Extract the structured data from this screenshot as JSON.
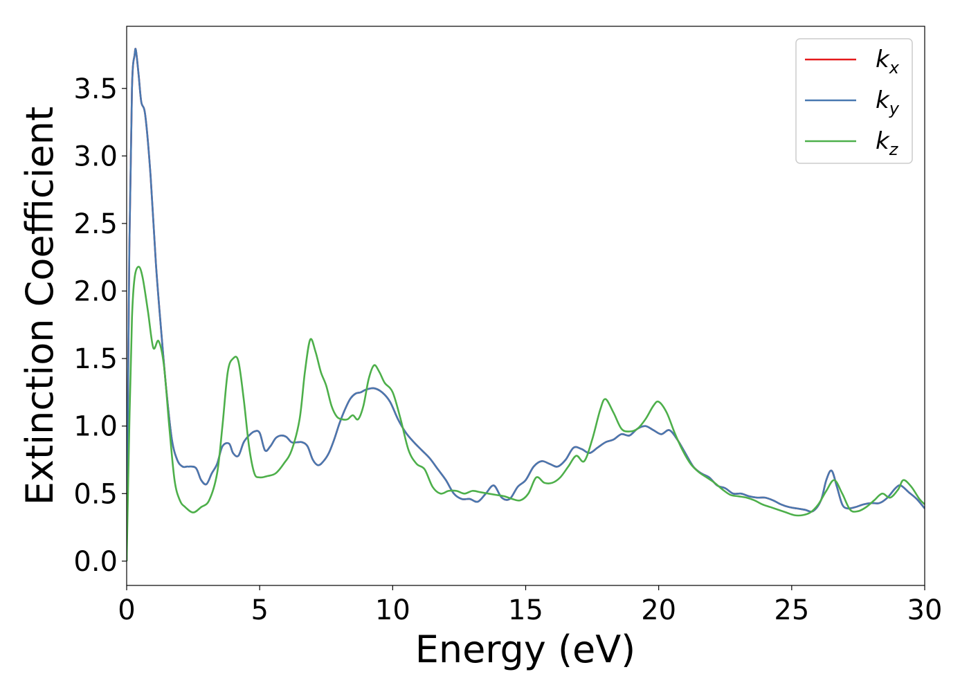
{
  "chart_data": {
    "type": "line",
    "title": "",
    "xlabel": "Energy (eV)",
    "ylabel": "Extinction Coefficient",
    "xlim": [
      0,
      30
    ],
    "ylim": [
      -0.18,
      3.96
    ],
    "xticks": [
      0,
      5,
      10,
      15,
      20,
      25,
      30
    ],
    "xtick_labels": [
      "0",
      "5",
      "10",
      "15",
      "20",
      "25",
      "30"
    ],
    "yticks": [
      0.0,
      0.5,
      1.0,
      1.5,
      2.0,
      2.5,
      3.0,
      3.5
    ],
    "ytick_labels": [
      "0.0",
      "0.5",
      "1.0",
      "1.5",
      "2.0",
      "2.5",
      "3.0",
      "3.5"
    ],
    "grid": false,
    "legend_position": "top-right",
    "series": [
      {
        "name": "k",
        "subscript": "x",
        "color": "#e41a1c",
        "x": [
          0.0,
          0.1,
          0.2,
          0.3,
          0.35,
          0.45,
          0.55,
          0.7,
          0.9,
          1.1,
          1.3,
          1.5,
          1.7,
          1.9,
          2.1,
          2.3,
          2.6,
          2.8,
          3.0,
          3.2,
          3.4,
          3.6,
          3.85,
          4.0,
          4.2,
          4.4,
          4.6,
          4.8,
          5.0,
          5.2,
          5.4,
          5.6,
          5.8,
          6.0,
          6.2,
          6.4,
          6.6,
          6.8,
          7.0,
          7.2,
          7.4,
          7.6,
          7.8,
          8.0,
          8.2,
          8.4,
          8.6,
          8.8,
          9.0,
          9.3,
          9.6,
          9.9,
          10.2,
          10.5,
          10.8,
          11.1,
          11.4,
          11.7,
          12.0,
          12.3,
          12.6,
          12.9,
          13.2,
          13.5,
          13.8,
          14.1,
          14.4,
          14.7,
          15.0,
          15.3,
          15.6,
          15.9,
          16.2,
          16.5,
          16.8,
          17.1,
          17.4,
          17.7,
          18.0,
          18.3,
          18.6,
          18.9,
          19.2,
          19.5,
          19.8,
          20.1,
          20.4,
          20.7,
          21.0,
          21.3,
          21.6,
          21.9,
          22.2,
          22.5,
          22.8,
          23.1,
          23.4,
          23.7,
          24.0,
          24.3,
          24.6,
          24.9,
          25.2,
          25.5,
          25.8,
          26.1,
          26.3,
          26.5,
          26.7,
          26.9,
          27.1,
          27.4,
          27.7,
          28.0,
          28.3,
          28.6,
          28.9,
          29.1,
          29.4,
          29.7,
          30.0
        ],
        "y": [
          0.0,
          2.3,
          3.5,
          3.75,
          3.78,
          3.6,
          3.4,
          3.3,
          2.85,
          2.2,
          1.7,
          1.25,
          0.9,
          0.75,
          0.7,
          0.7,
          0.69,
          0.6,
          0.57,
          0.65,
          0.72,
          0.85,
          0.87,
          0.8,
          0.78,
          0.88,
          0.93,
          0.96,
          0.95,
          0.82,
          0.85,
          0.91,
          0.93,
          0.92,
          0.88,
          0.88,
          0.88,
          0.85,
          0.75,
          0.71,
          0.74,
          0.8,
          0.9,
          1.02,
          1.12,
          1.2,
          1.24,
          1.25,
          1.27,
          1.28,
          1.25,
          1.18,
          1.05,
          0.95,
          0.88,
          0.82,
          0.76,
          0.68,
          0.6,
          0.5,
          0.46,
          0.46,
          0.44,
          0.5,
          0.56,
          0.47,
          0.46,
          0.55,
          0.6,
          0.7,
          0.74,
          0.72,
          0.7,
          0.75,
          0.84,
          0.83,
          0.8,
          0.84,
          0.88,
          0.9,
          0.94,
          0.93,
          0.98,
          1.0,
          0.97,
          0.94,
          0.97,
          0.9,
          0.8,
          0.7,
          0.65,
          0.62,
          0.56,
          0.54,
          0.5,
          0.5,
          0.48,
          0.47,
          0.47,
          0.45,
          0.42,
          0.4,
          0.39,
          0.38,
          0.37,
          0.45,
          0.6,
          0.67,
          0.55,
          0.42,
          0.39,
          0.4,
          0.42,
          0.43,
          0.43,
          0.47,
          0.54,
          0.56,
          0.51,
          0.46,
          0.39
        ]
      },
      {
        "name": "k",
        "subscript": "y",
        "color": "#4878b0",
        "x": [
          0.0,
          0.1,
          0.2,
          0.3,
          0.35,
          0.45,
          0.55,
          0.7,
          0.9,
          1.1,
          1.3,
          1.5,
          1.7,
          1.9,
          2.1,
          2.3,
          2.6,
          2.8,
          3.0,
          3.2,
          3.4,
          3.6,
          3.85,
          4.0,
          4.2,
          4.4,
          4.6,
          4.8,
          5.0,
          5.2,
          5.4,
          5.6,
          5.8,
          6.0,
          6.2,
          6.4,
          6.6,
          6.8,
          7.0,
          7.2,
          7.4,
          7.6,
          7.8,
          8.0,
          8.2,
          8.4,
          8.6,
          8.8,
          9.0,
          9.3,
          9.6,
          9.9,
          10.2,
          10.5,
          10.8,
          11.1,
          11.4,
          11.7,
          12.0,
          12.3,
          12.6,
          12.9,
          13.2,
          13.5,
          13.8,
          14.1,
          14.4,
          14.7,
          15.0,
          15.3,
          15.6,
          15.9,
          16.2,
          16.5,
          16.8,
          17.1,
          17.4,
          17.7,
          18.0,
          18.3,
          18.6,
          18.9,
          19.2,
          19.5,
          19.8,
          20.1,
          20.4,
          20.7,
          21.0,
          21.3,
          21.6,
          21.9,
          22.2,
          22.5,
          22.8,
          23.1,
          23.4,
          23.7,
          24.0,
          24.3,
          24.6,
          24.9,
          25.2,
          25.5,
          25.8,
          26.1,
          26.3,
          26.5,
          26.7,
          26.9,
          27.1,
          27.4,
          27.7,
          28.0,
          28.3,
          28.6,
          28.9,
          29.1,
          29.4,
          29.7,
          30.0
        ],
        "y": [
          0.0,
          2.3,
          3.5,
          3.75,
          3.78,
          3.6,
          3.4,
          3.3,
          2.85,
          2.2,
          1.7,
          1.25,
          0.9,
          0.75,
          0.7,
          0.7,
          0.69,
          0.6,
          0.57,
          0.65,
          0.72,
          0.85,
          0.87,
          0.8,
          0.78,
          0.88,
          0.93,
          0.96,
          0.95,
          0.82,
          0.85,
          0.91,
          0.93,
          0.92,
          0.88,
          0.88,
          0.88,
          0.85,
          0.75,
          0.71,
          0.74,
          0.8,
          0.9,
          1.02,
          1.12,
          1.2,
          1.24,
          1.25,
          1.27,
          1.28,
          1.25,
          1.18,
          1.05,
          0.95,
          0.88,
          0.82,
          0.76,
          0.68,
          0.6,
          0.5,
          0.46,
          0.46,
          0.44,
          0.5,
          0.56,
          0.47,
          0.46,
          0.55,
          0.6,
          0.7,
          0.74,
          0.72,
          0.7,
          0.75,
          0.84,
          0.83,
          0.8,
          0.84,
          0.88,
          0.9,
          0.94,
          0.93,
          0.98,
          1.0,
          0.97,
          0.94,
          0.97,
          0.9,
          0.8,
          0.7,
          0.65,
          0.62,
          0.56,
          0.54,
          0.5,
          0.5,
          0.48,
          0.47,
          0.47,
          0.45,
          0.42,
          0.4,
          0.39,
          0.38,
          0.37,
          0.45,
          0.6,
          0.67,
          0.55,
          0.42,
          0.39,
          0.4,
          0.42,
          0.43,
          0.43,
          0.47,
          0.54,
          0.56,
          0.51,
          0.46,
          0.39
        ]
      },
      {
        "name": "k",
        "subscript": "z",
        "color": "#4daf4a",
        "x": [
          0.0,
          0.1,
          0.2,
          0.3,
          0.45,
          0.6,
          0.8,
          1.0,
          1.2,
          1.4,
          1.6,
          1.8,
          2.0,
          2.2,
          2.5,
          2.8,
          3.1,
          3.4,
          3.6,
          3.8,
          4.0,
          4.2,
          4.4,
          4.6,
          4.8,
          5.0,
          5.3,
          5.6,
          5.9,
          6.2,
          6.5,
          6.7,
          6.9,
          7.1,
          7.3,
          7.5,
          7.7,
          7.9,
          8.1,
          8.3,
          8.5,
          8.7,
          8.9,
          9.1,
          9.3,
          9.5,
          9.7,
          10.0,
          10.3,
          10.6,
          10.9,
          11.2,
          11.5,
          11.8,
          12.1,
          12.4,
          12.7,
          13.0,
          13.3,
          13.6,
          13.9,
          14.2,
          14.5,
          14.8,
          15.1,
          15.4,
          15.7,
          16.0,
          16.3,
          16.6,
          16.9,
          17.2,
          17.5,
          17.8,
          18.0,
          18.3,
          18.6,
          18.9,
          19.2,
          19.5,
          19.8,
          20.0,
          20.3,
          20.6,
          20.9,
          21.2,
          21.5,
          21.8,
          22.1,
          22.4,
          22.7,
          23.0,
          23.3,
          23.6,
          23.9,
          24.2,
          24.5,
          24.8,
          25.1,
          25.4,
          25.7,
          26.0,
          26.3,
          26.6,
          26.9,
          27.2,
          27.5,
          27.8,
          28.1,
          28.4,
          28.7,
          29.0,
          29.2,
          29.5,
          29.8,
          30.0
        ],
        "y": [
          0.0,
          1.0,
          1.8,
          2.1,
          2.18,
          2.1,
          1.85,
          1.58,
          1.63,
          1.45,
          1.0,
          0.6,
          0.45,
          0.4,
          0.36,
          0.4,
          0.45,
          0.65,
          1.0,
          1.4,
          1.5,
          1.48,
          1.2,
          0.85,
          0.65,
          0.62,
          0.63,
          0.65,
          0.72,
          0.82,
          1.05,
          1.4,
          1.64,
          1.55,
          1.4,
          1.3,
          1.15,
          1.07,
          1.05,
          1.05,
          1.08,
          1.05,
          1.15,
          1.35,
          1.45,
          1.4,
          1.32,
          1.25,
          1.05,
          0.82,
          0.72,
          0.68,
          0.55,
          0.5,
          0.52,
          0.52,
          0.5,
          0.52,
          0.51,
          0.5,
          0.49,
          0.48,
          0.46,
          0.45,
          0.5,
          0.62,
          0.58,
          0.58,
          0.62,
          0.7,
          0.78,
          0.74,
          0.9,
          1.12,
          1.2,
          1.1,
          0.98,
          0.96,
          0.98,
          1.05,
          1.15,
          1.18,
          1.1,
          0.95,
          0.82,
          0.72,
          0.66,
          0.62,
          0.58,
          0.53,
          0.49,
          0.48,
          0.47,
          0.45,
          0.42,
          0.4,
          0.38,
          0.36,
          0.34,
          0.34,
          0.36,
          0.42,
          0.52,
          0.6,
          0.5,
          0.38,
          0.37,
          0.4,
          0.45,
          0.5,
          0.47,
          0.53,
          0.6,
          0.55,
          0.46,
          0.42
        ]
      }
    ]
  }
}
